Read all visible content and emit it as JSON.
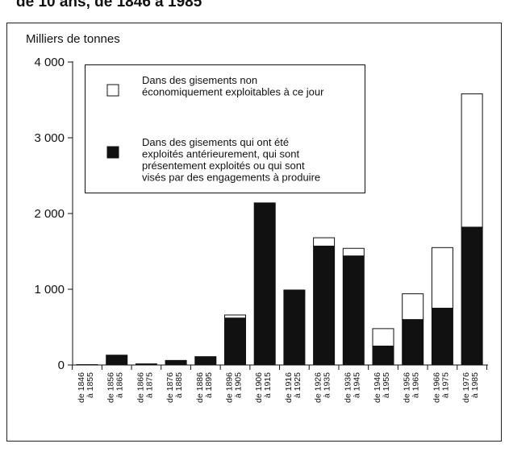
{
  "chart_data": {
    "type": "stacked_bar",
    "title": "de 10 ans, de 1846 à 1985",
    "y_axis_label": "Milliers de tonnes",
    "categories": [
      [
        "de 1846",
        "à 1855"
      ],
      [
        "de 1856",
        "à 1865"
      ],
      [
        "de 1866",
        "à 1875"
      ],
      [
        "de 1876",
        "à 1885"
      ],
      [
        "de 1886",
        "à 1895"
      ],
      [
        "de 1896",
        "à 1905"
      ],
      [
        "de 1906",
        "à 1915"
      ],
      [
        "de 1916",
        "à 1925"
      ],
      [
        "de 1926",
        "à 1935"
      ],
      [
        "de 1936",
        "à 1945"
      ],
      [
        "de 1946",
        "à 1955"
      ],
      [
        "de 1956",
        "à 1965"
      ],
      [
        "de 1966",
        "à 1975"
      ],
      [
        "de 1976",
        "à 1985"
      ]
    ],
    "series": [
      {
        "name": [
          "Dans des gisements qui ont été",
          "exploités antérieurement, qui sont",
          "présentement exploités ou qui sont",
          "visés par des engagements à produire"
        ],
        "color": "#111111",
        "values": [
          5,
          130,
          15,
          60,
          110,
          620,
          2140,
          980,
          1570,
          1440,
          250,
          600,
          750,
          1820
        ]
      },
      {
        "name": [
          "Dans des gisements non",
          "économiquement exploitables à ce jour"
        ],
        "color": "#ffffff",
        "values": [
          0,
          0,
          0,
          0,
          0,
          40,
          0,
          10,
          110,
          100,
          230,
          340,
          800,
          1760
        ]
      }
    ],
    "ylim": [
      0,
      4000
    ],
    "yticks": [
      0,
      {
        "value": 1000,
        "label": "1 000"
      },
      {
        "value": 2000,
        "label": "2 000"
      },
      {
        "value": 3000,
        "label": "3 000"
      },
      {
        "value": 4000,
        "label": "4 000"
      }
    ],
    "grid": false
  }
}
